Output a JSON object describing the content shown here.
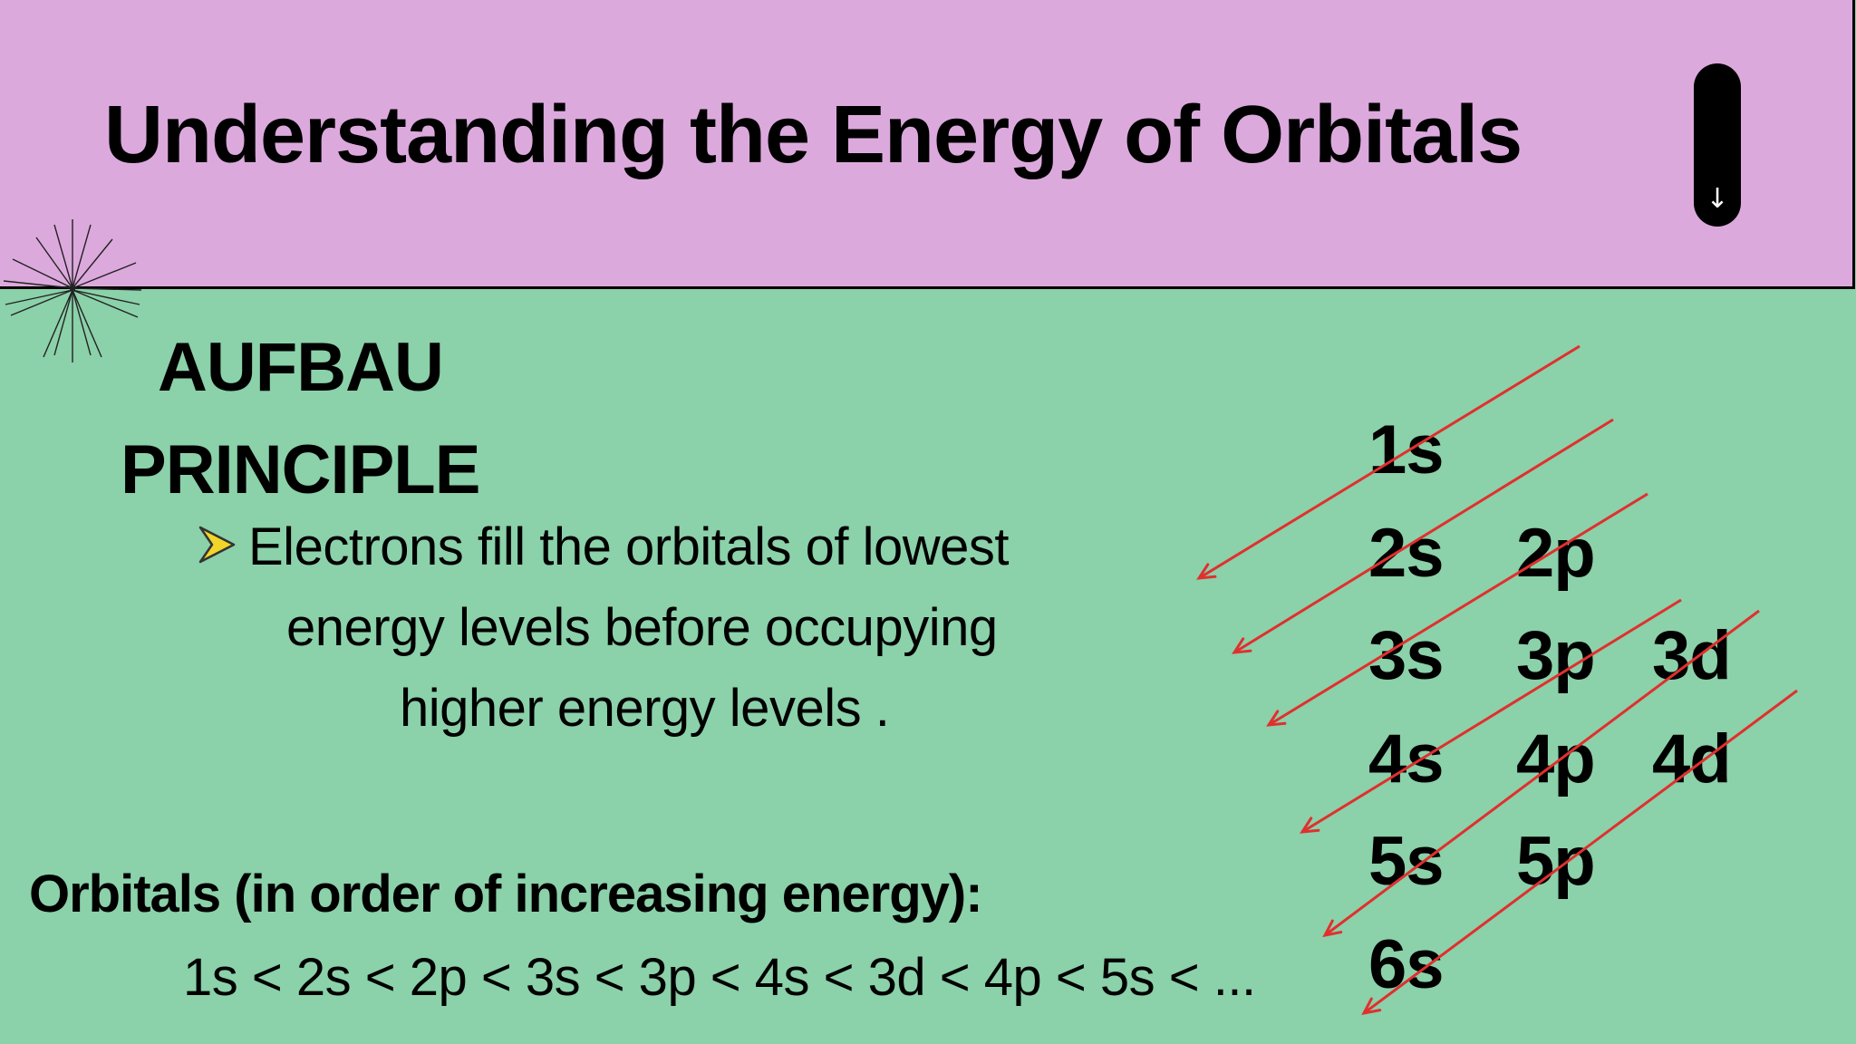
{
  "header": {
    "title": "Understanding the Energy of Orbitals",
    "scroll_icon": "arrow-down-icon"
  },
  "principle": {
    "heading_line1": "AUFBAU",
    "heading_line2": "PRINCIPLE",
    "bullet_icon": "chevron-right-icon",
    "body_line1": "Electrons fill the orbitals of lowest",
    "body_line2": "energy levels before occupying",
    "body_line3": "higher energy levels ."
  },
  "order": {
    "label": "Orbitals (in order of increasing energy):",
    "sequence": "1s < 2s < 2p < 3s < 3p < 4s < 3d < 4p < 5s < ..."
  },
  "diagram": {
    "orbitals": [
      {
        "label": "1s",
        "row": 1,
        "col": 1
      },
      {
        "label": "2s",
        "row": 2,
        "col": 1
      },
      {
        "label": "2p",
        "row": 2,
        "col": 2
      },
      {
        "label": "3s",
        "row": 3,
        "col": 1
      },
      {
        "label": "3p",
        "row": 3,
        "col": 2
      },
      {
        "label": "3d",
        "row": 3,
        "col": 3
      },
      {
        "label": "4s",
        "row": 4,
        "col": 1
      },
      {
        "label": "4p",
        "row": 4,
        "col": 2
      },
      {
        "label": "4d",
        "row": 4,
        "col": 3
      },
      {
        "label": "5s",
        "row": 5,
        "col": 1
      },
      {
        "label": "5p",
        "row": 5,
        "col": 2
      },
      {
        "label": "6s",
        "row": 6,
        "col": 1
      }
    ],
    "arrow_color": "#e0302e"
  },
  "colors": {
    "header_bg": "#dca9dd",
    "body_bg": "#8bd1aa",
    "bullet_fill": "#f2d52a"
  }
}
